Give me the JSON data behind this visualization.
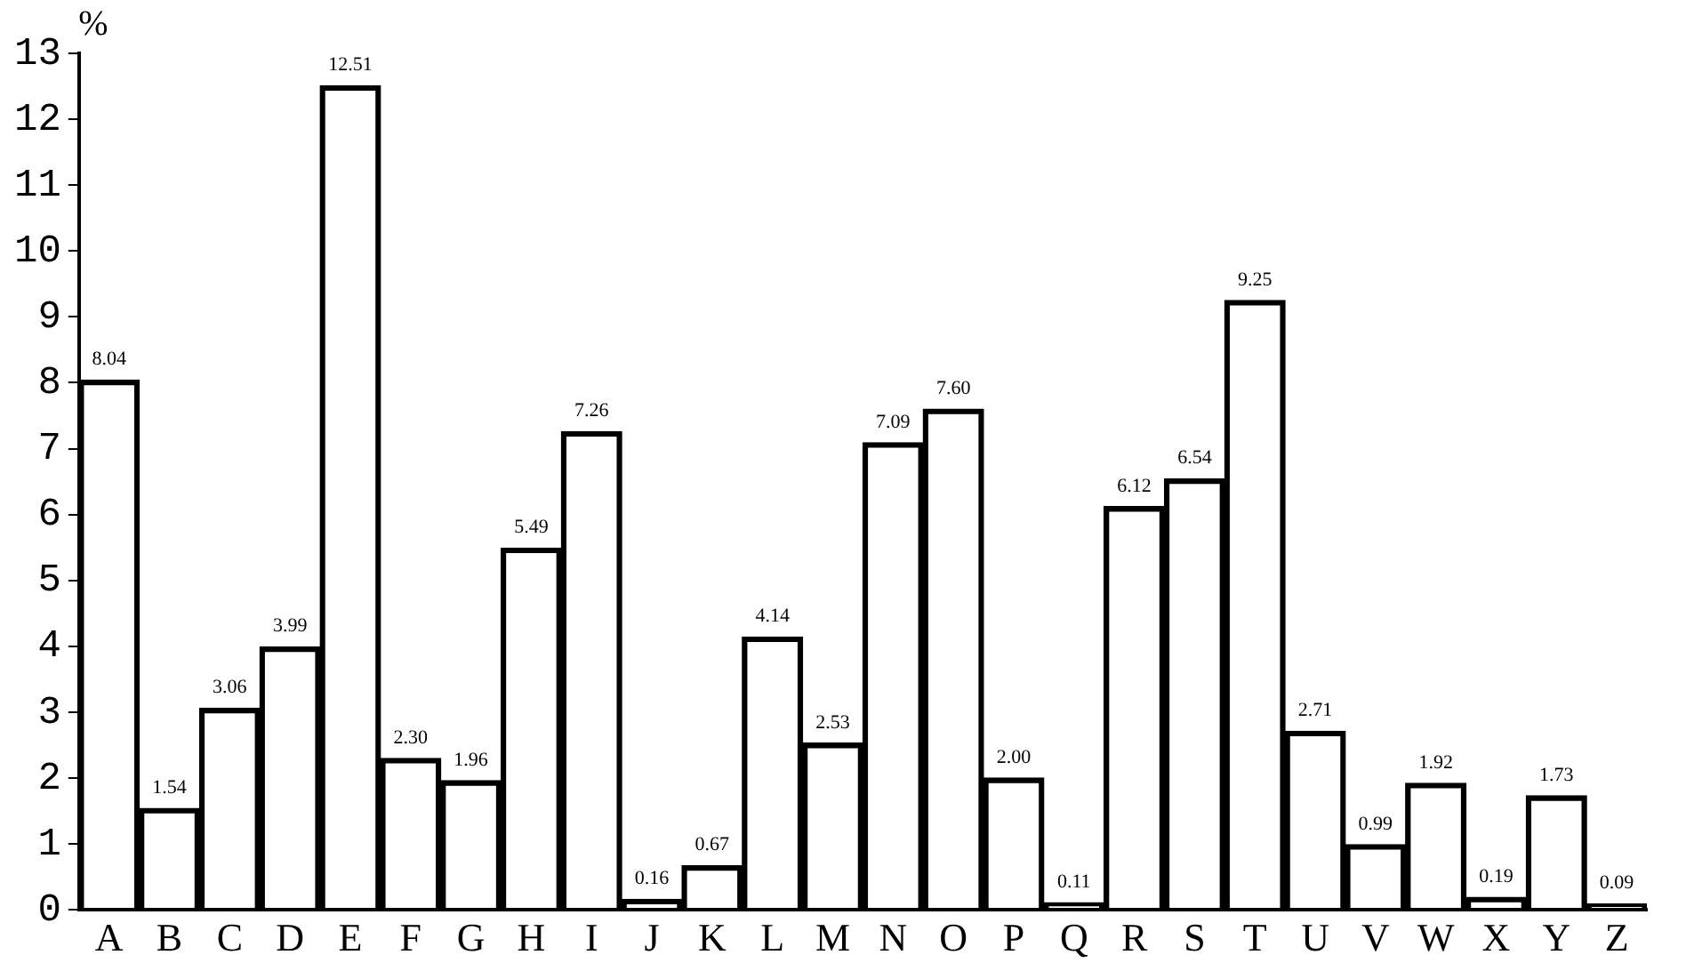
{
  "chart_data": {
    "type": "bar",
    "ylabel": "%",
    "categories": [
      "A",
      "B",
      "C",
      "D",
      "E",
      "F",
      "G",
      "H",
      "I",
      "J",
      "K",
      "L",
      "M",
      "N",
      "O",
      "P",
      "Q",
      "R",
      "S",
      "T",
      "U",
      "V",
      "W",
      "X",
      "Y",
      "Z"
    ],
    "values": [
      8.04,
      1.54,
      3.06,
      3.99,
      12.51,
      2.3,
      1.96,
      5.49,
      7.26,
      0.16,
      0.67,
      4.14,
      2.53,
      7.09,
      7.6,
      2.0,
      0.11,
      6.12,
      6.54,
      9.25,
      2.71,
      0.99,
      1.92,
      0.19,
      1.73,
      0.09
    ],
    "value_labels": [
      "8.04",
      "1.54",
      "3.06",
      "3.99",
      "12.51",
      "2.30",
      "1.96",
      "5.49",
      "7.26",
      "0.16",
      "0.67",
      "4.14",
      "2.53",
      "7.09",
      "7.60",
      "2.00",
      "0.11",
      "6.12",
      "6.54",
      "9.25",
      "2.71",
      "0.99",
      "1.92",
      "0.19",
      "1.73",
      "0.09"
    ],
    "color": "#000000",
    "ylim": [
      0,
      13
    ],
    "yticks": [
      0,
      1,
      2,
      3,
      4,
      5,
      6,
      7,
      8,
      9,
      10,
      11,
      12,
      13
    ],
    "grid": false,
    "legend": false
  }
}
